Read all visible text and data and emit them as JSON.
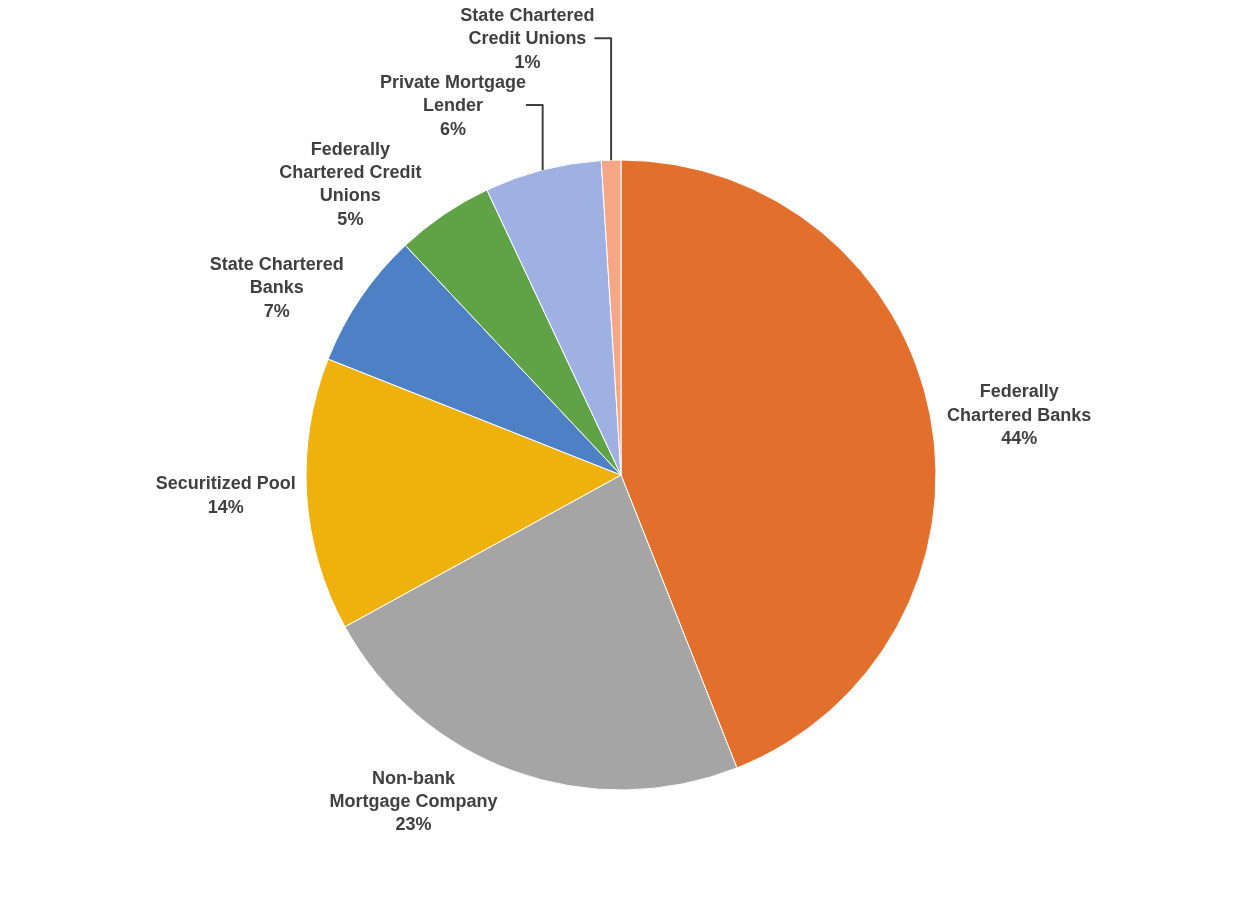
{
  "chart_data": {
    "type": "pie",
    "categories": [
      "Federally Chartered Banks",
      "Non-bank Mortgage Company",
      "Securitized Pool",
      "State Chartered Banks",
      "Federally Chartered Credit Unions",
      "Private Mortgage Lender",
      "State Chartered Credit Unions"
    ],
    "values": [
      44,
      23,
      14,
      7,
      5,
      6,
      1
    ],
    "value_labels": [
      "44%",
      "23%",
      "14%",
      "7%",
      "5%",
      "6%",
      "1%"
    ],
    "colors": [
      "#e2702c",
      "#a5a5a5",
      "#efb20c",
      "#4d80c4",
      "#5fa346",
      "#9fb1e3",
      "#f5a785"
    ],
    "legend": false
  }
}
